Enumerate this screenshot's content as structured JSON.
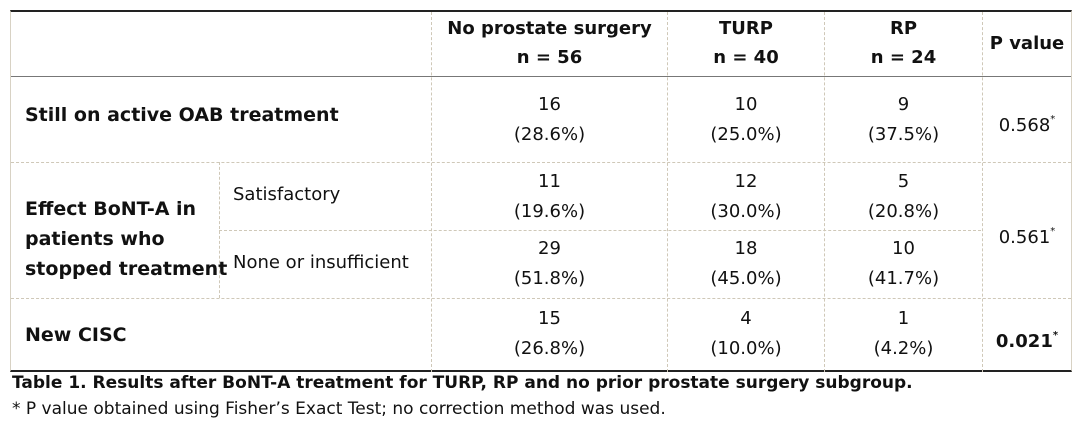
{
  "headers": {
    "no_surgery_l1": "No prostate surgery",
    "no_surgery_l2": "n = 56",
    "turp_l1": "TURP",
    "turp_l2": "n = 40",
    "rp_l1": "RP",
    "rp_l2": "n = 24",
    "pvalue": "P value"
  },
  "rows": {
    "active": {
      "label": "Still on active OAB treatment",
      "no_surgery": [
        "16",
        "(28.6%)"
      ],
      "turp": [
        "10",
        "(25.0%)"
      ],
      "rp": [
        "9",
        "(37.5%)"
      ],
      "p": "0.568",
      "p_mark": "*"
    },
    "effect": {
      "label_l1": "Effect BoNT-A in",
      "label_l2": "patients who",
      "label_l3": "stopped treatment",
      "satisfactory": {
        "label": "Satisfactory",
        "no_surgery": [
          "11",
          "(19.6%)"
        ],
        "turp": [
          "12",
          "(30.0%)"
        ],
        "rp": [
          "5",
          "(20.8%)"
        ]
      },
      "insufficient": {
        "label": "None or insufficient",
        "no_surgery": [
          "29",
          "(51.8%)"
        ],
        "turp": [
          "18",
          "(45.0%)"
        ],
        "rp": [
          "10",
          "(41.7%)"
        ]
      },
      "p": "0.561",
      "p_mark": "*"
    },
    "cisc": {
      "label": "New CISC",
      "no_surgery": [
        "15",
        "(26.8%)"
      ],
      "turp": [
        "4",
        "(10.0%)"
      ],
      "rp": [
        "1",
        "(4.2%)"
      ],
      "p": "0.021",
      "p_mark": "*"
    }
  },
  "caption": "Table 1. Results after BoNT-A treatment for TURP, RP and no prior prostate surgery subgroup.",
  "footnote": "* P value obtained using Fisher’s Exact Test; no correction method was used."
}
